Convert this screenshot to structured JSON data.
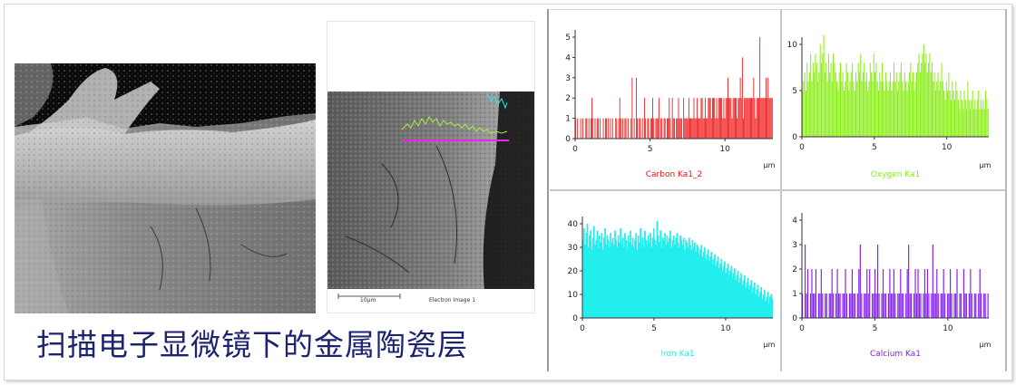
{
  "caption": "扫描电子显微镜下的金属陶瓷层",
  "sem_right": {
    "scale_label": "10μm",
    "image_label": "Electron Image 1"
  },
  "colors": {
    "carbon": "#ee1111",
    "oxygen": "#88ee11",
    "iron": "#22eeee",
    "calcium": "#8822ee",
    "caption": "#1c2472",
    "linescan": "#ee22ee"
  },
  "chart_data": [
    {
      "type": "bar",
      "title": "Carbon Ka1_2",
      "color": "#ee1111",
      "xlabel": "μm",
      "xlim": [
        0,
        13.2
      ],
      "ylim": [
        0,
        5
      ],
      "xticks": [
        0,
        5,
        10
      ],
      "yticks": [
        0,
        1,
        2,
        3,
        4,
        5
      ],
      "values": [
        1,
        0,
        1,
        0,
        0,
        1,
        0,
        1,
        0,
        0,
        1,
        1,
        0,
        1,
        0,
        1,
        2,
        1,
        0,
        1,
        0,
        1,
        1,
        0,
        1,
        0,
        0,
        1,
        0,
        1,
        1,
        0,
        1,
        0,
        1,
        0,
        1,
        0,
        0,
        1,
        1,
        0,
        1,
        2,
        1,
        0,
        1,
        0,
        1,
        1,
        0,
        1,
        0,
        0,
        1,
        3,
        0,
        1,
        0,
        3,
        1,
        0,
        1,
        1,
        0,
        1,
        0,
        2,
        1,
        0,
        1,
        1,
        0,
        1,
        1,
        2,
        1,
        0,
        1,
        1,
        1,
        2,
        0,
        1,
        1,
        0,
        1,
        1,
        0,
        1,
        1,
        2,
        1,
        0,
        2,
        1,
        1,
        0,
        1,
        1,
        2,
        1,
        1,
        1,
        0,
        2,
        1,
        1,
        1,
        1,
        2,
        1,
        1,
        1,
        1,
        2,
        1,
        1,
        2,
        1,
        1,
        1,
        2,
        2,
        1,
        1,
        2,
        1,
        1,
        2,
        2,
        2,
        1,
        2,
        2,
        2,
        1,
        2,
        1,
        2,
        2,
        2,
        2,
        1,
        2,
        1,
        2,
        2,
        3,
        2,
        2,
        2,
        1,
        2,
        2,
        2,
        2,
        1,
        2,
        2,
        3,
        2,
        4,
        1,
        2,
        2,
        2,
        2,
        2,
        2,
        2,
        2,
        2,
        3,
        2,
        1,
        2,
        2,
        2,
        5,
        2,
        2,
        2,
        2,
        2,
        3,
        2,
        3,
        2,
        2,
        2,
        2
      ]
    },
    {
      "type": "bar",
      "title": "Oxygen Ka1",
      "color": "#88ee11",
      "xlabel": "μm",
      "xlim": [
        0,
        12.9
      ],
      "ylim": [
        0,
        10
      ],
      "xticks": [
        0,
        5,
        10
      ],
      "yticks": [
        0,
        5,
        10
      ],
      "values": [
        5,
        6,
        7,
        5,
        8,
        6,
        7,
        9,
        6,
        8,
        7,
        9,
        8,
        6,
        7,
        10,
        8,
        9,
        11,
        7,
        8,
        6,
        9,
        7,
        8,
        6,
        9,
        8,
        7,
        6,
        5,
        7,
        8,
        6,
        7,
        5,
        6,
        8,
        7,
        5,
        6,
        7,
        8,
        6,
        5,
        7,
        6,
        8,
        7,
        9,
        6,
        7,
        8,
        6,
        7,
        5,
        6,
        8,
        7,
        6,
        9,
        7,
        8,
        6,
        5,
        7,
        6,
        8,
        6,
        5,
        7,
        6,
        5,
        6,
        7,
        5,
        6,
        8,
        6,
        7,
        5,
        6,
        7,
        8,
        6,
        5,
        7,
        6,
        5,
        6,
        7,
        8,
        6,
        7,
        5,
        6,
        7,
        8,
        9,
        7,
        8,
        9,
        10,
        8,
        9,
        7,
        8,
        9,
        7,
        8,
        6,
        7,
        5,
        6,
        7,
        5,
        6,
        8,
        6,
        5,
        4,
        6,
        5,
        7,
        5,
        4,
        6,
        5,
        4,
        6,
        5,
        4,
        3,
        5,
        4,
        3,
        5,
        4,
        3,
        6,
        4,
        3,
        4,
        5,
        3,
        4,
        3,
        4,
        5,
        3,
        4,
        3,
        4,
        3,
        5,
        4,
        3
      ]
    },
    {
      "type": "area",
      "title": "Iron Ka1",
      "color": "#22eeee",
      "xlabel": "μm",
      "xlim": [
        0,
        13.3
      ],
      "ylim": [
        0,
        40
      ],
      "xticks": [
        0,
        5,
        10
      ],
      "yticks": [
        0,
        10,
        20,
        30,
        40
      ],
      "values": [
        33,
        38,
        31,
        36,
        40,
        30,
        35,
        37,
        29,
        34,
        39,
        31,
        33,
        37,
        30,
        35,
        32,
        36,
        29,
        34,
        38,
        31,
        35,
        33,
        30,
        36,
        32,
        34,
        31,
        37,
        33,
        30,
        35,
        32,
        38,
        31,
        34,
        30,
        36,
        33,
        29,
        35,
        32,
        37,
        31,
        34,
        30,
        33,
        36,
        29,
        35,
        32,
        38,
        31,
        34,
        30,
        37,
        33,
        31,
        35,
        32,
        36,
        30,
        34,
        38,
        33,
        31,
        41,
        35,
        32,
        37,
        30,
        34,
        33,
        36,
        31,
        35,
        32,
        34,
        37,
        30,
        33,
        35,
        31,
        34,
        36,
        32,
        30,
        35,
        33,
        31,
        34,
        29,
        33,
        32,
        30,
        34,
        31,
        29,
        33,
        30,
        32,
        28,
        31,
        30,
        27,
        29,
        31,
        26,
        28,
        30,
        25,
        27,
        29,
        24,
        26,
        28,
        23,
        25,
        27,
        22,
        24,
        26,
        21,
        23,
        25,
        20,
        22,
        24,
        19,
        21,
        23,
        18,
        20,
        22,
        17,
        19,
        21,
        16,
        18,
        20,
        15,
        17,
        19,
        14,
        16,
        18,
        13,
        15,
        17,
        12,
        14,
        16,
        11,
        13,
        15,
        10,
        12,
        14,
        9,
        11,
        13,
        8,
        10,
        12,
        7,
        9,
        11,
        6,
        9,
        10,
        8
      ]
    },
    {
      "type": "bar",
      "title": "Calcium Ka1",
      "color": "#8822ee",
      "xlabel": "μm",
      "xlim": [
        0,
        12.8
      ],
      "ylim": [
        0,
        4
      ],
      "xticks": [
        0,
        5,
        10
      ],
      "yticks": [
        0,
        1,
        2,
        3,
        4
      ],
      "values": [
        1,
        0,
        3,
        1,
        2,
        0,
        1,
        2,
        1,
        1,
        2,
        0,
        1,
        1,
        2,
        1,
        0,
        1,
        1,
        0,
        1,
        1,
        2,
        1,
        0,
        1,
        2,
        1,
        1,
        0,
        1,
        1,
        2,
        1,
        0,
        1,
        1,
        2,
        1,
        1,
        0,
        1,
        2,
        3,
        1,
        0,
        1,
        1,
        2,
        1,
        2,
        0,
        1,
        1,
        2,
        1,
        3,
        1,
        0,
        1,
        2,
        1,
        1,
        0,
        1,
        2,
        1,
        1,
        2,
        1,
        0,
        1,
        1,
        2,
        1,
        1,
        0,
        1,
        2,
        3,
        1,
        1,
        0,
        1,
        2,
        1,
        2,
        1,
        1,
        0,
        1,
        2,
        1,
        2,
        1,
        0,
        1,
        3,
        1,
        1,
        2,
        1,
        0,
        1,
        1,
        2,
        1,
        0,
        1,
        1,
        2,
        1,
        0,
        1,
        1,
        2,
        0,
        1,
        1,
        0,
        2,
        1,
        1,
        0,
        1,
        2,
        1,
        0,
        1,
        1,
        0,
        1,
        2,
        1,
        0,
        1,
        1,
        0,
        1
      ]
    }
  ]
}
